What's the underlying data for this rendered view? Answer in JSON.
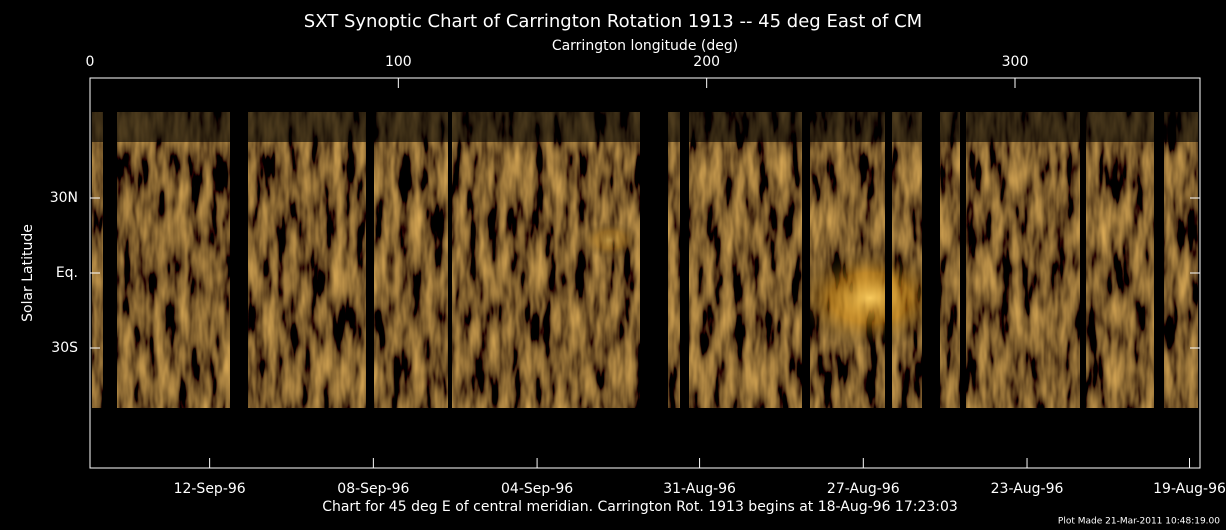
{
  "chart_data": {
    "type": "synoptic",
    "title": "SXT Synoptic Chart of Carrington Rotation 1913 -- 45 deg East of CM",
    "xlabel": "Carrington longitude (deg)",
    "ylabel": "Solar Latitude",
    "xlim": [
      0,
      360
    ],
    "xticks": [
      0,
      100,
      200,
      300
    ],
    "ylim": [
      -78,
      78
    ],
    "yticks": [
      {
        "value": 30,
        "label": "30N"
      },
      {
        "value": 0,
        "label": "Eq."
      },
      {
        "value": -30,
        "label": "30S"
      }
    ],
    "x2ticks": [
      {
        "value": 38.8,
        "label": "12-Sep-96"
      },
      {
        "value": 91.9,
        "label": "08-Sep-96"
      },
      {
        "value": 145,
        "label": "04-Sep-96"
      },
      {
        "value": 197.7,
        "label": "31-Aug-96"
      },
      {
        "value": 250.8,
        "label": "27-Aug-96"
      },
      {
        "value": 303.9,
        "label": "23-Aug-96"
      },
      {
        "value": 356.6,
        "label": "19-Aug-96"
      }
    ],
    "caption": "Chart for 45 deg E of central meridian.  Carrington Rot. 1913 begins at 18-Aug-96 17:23:03",
    "footer": "Plot Made 21-Mar-2011 10:48:19.00"
  }
}
